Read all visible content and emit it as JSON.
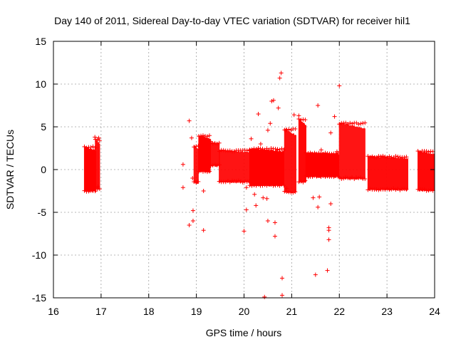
{
  "chart_data": {
    "type": "scatter",
    "title": "Day 140 of 2011, Sidereal Day-to-day VTEC variation (SDTVAR) for receiver hil1",
    "xlabel": "GPS time / hours",
    "ylabel": "SDTVAR / TECUs",
    "xlim": [
      16,
      24
    ],
    "ylim": [
      -15,
      15
    ],
    "xticks": [
      16,
      17,
      18,
      19,
      20,
      21,
      22,
      23,
      24
    ],
    "yticks": [
      -15,
      -10,
      -5,
      0,
      5,
      10,
      15
    ],
    "xtick_labels": [
      "16",
      "17",
      "18",
      "19",
      "20",
      "21",
      "22",
      "23",
      "24"
    ],
    "ytick_labels": [
      "-15",
      "-10",
      "-5",
      "0",
      "5",
      "10",
      "15"
    ],
    "grid": true,
    "marker": "+",
    "color": "#ff0000",
    "bands": [
      {
        "x_start": 16.65,
        "x_end": 16.9,
        "y_low": -2.6,
        "y_high": 2.7
      },
      {
        "x_start": 16.88,
        "x_end": 16.98,
        "y_low": -2.3,
        "y_high": 3.6
      },
      {
        "x_start": 18.95,
        "x_end": 19.05,
        "y_low": -1.6,
        "y_high": 2.8
      },
      {
        "x_start": 19.05,
        "x_end": 19.3,
        "y_low": -0.3,
        "y_high": 4.0
      },
      {
        "x_start": 19.3,
        "x_end": 19.48,
        "y_low": 0.4,
        "y_high": 3.2
      },
      {
        "x_start": 19.48,
        "x_end": 20.12,
        "y_low": -1.5,
        "y_high": 2.3
      },
      {
        "x_start": 20.12,
        "x_end": 20.85,
        "y_low": -1.9,
        "y_high": 2.5
      },
      {
        "x_start": 20.85,
        "x_end": 21.1,
        "y_low": -2.7,
        "y_high": 4.8
      },
      {
        "x_start": 21.15,
        "x_end": 21.3,
        "y_low": -1.5,
        "y_high": 6.0
      },
      {
        "x_start": 21.3,
        "x_end": 22.0,
        "y_low": -0.9,
        "y_high": 2.0
      },
      {
        "x_start": 22.0,
        "x_end": 22.55,
        "y_low": -1.1,
        "y_high": 5.5
      },
      {
        "x_start": 22.6,
        "x_end": 23.45,
        "y_low": -2.4,
        "y_high": 1.6
      },
      {
        "x_start": 23.65,
        "x_end": 24.0,
        "y_low": -2.5,
        "y_high": 2.2
      }
    ],
    "outliers": [
      [
        16.95,
        3.7
      ],
      [
        16.87,
        3.8
      ],
      [
        16.93,
        -2.0
      ],
      [
        18.72,
        0.6
      ],
      [
        18.72,
        -2.1
      ],
      [
        18.85,
        5.7
      ],
      [
        18.9,
        3.7
      ],
      [
        18.85,
        -6.5
      ],
      [
        18.93,
        -6.0
      ],
      [
        18.93,
        -4.8
      ],
      [
        18.92,
        -1.0
      ],
      [
        19.15,
        -2.5
      ],
      [
        19.15,
        -7.1
      ],
      [
        19.3,
        3.3
      ],
      [
        20.0,
        -7.2
      ],
      [
        20.05,
        -2.1
      ],
      [
        20.05,
        -4.7
      ],
      [
        20.15,
        3.6
      ],
      [
        20.22,
        -2.9
      ],
      [
        20.25,
        -4.2
      ],
      [
        20.3,
        6.5
      ],
      [
        20.35,
        3.0
      ],
      [
        20.4,
        -3.3
      ],
      [
        20.43,
        -14.9
      ],
      [
        20.48,
        -3.4
      ],
      [
        20.5,
        4.6
      ],
      [
        20.55,
        5.4
      ],
      [
        20.58,
        8.0
      ],
      [
        20.62,
        8.1
      ],
      [
        20.65,
        -7.8
      ],
      [
        20.5,
        -6.0
      ],
      [
        20.65,
        -6.2
      ],
      [
        20.7,
        2.3
      ],
      [
        20.72,
        7.2
      ],
      [
        20.75,
        10.7
      ],
      [
        20.78,
        11.3
      ],
      [
        20.8,
        -12.7
      ],
      [
        20.8,
        -14.7
      ],
      [
        20.88,
        4.6
      ],
      [
        20.9,
        -2.2
      ],
      [
        21.05,
        6.4
      ],
      [
        21.15,
        6.3
      ],
      [
        21.45,
        -3.3
      ],
      [
        21.5,
        -12.3
      ],
      [
        21.55,
        -4.4
      ],
      [
        21.55,
        7.5
      ],
      [
        21.58,
        -3.2
      ],
      [
        21.6,
        1.6
      ],
      [
        21.62,
        2.3
      ],
      [
        21.75,
        -11.8
      ],
      [
        21.78,
        -7.1
      ],
      [
        21.78,
        -8.2
      ],
      [
        21.78,
        -6.8
      ],
      [
        21.82,
        4.3
      ],
      [
        21.82,
        -4.0
      ],
      [
        21.9,
        6.2
      ],
      [
        21.95,
        2.1
      ],
      [
        22.0,
        9.8
      ]
    ]
  }
}
